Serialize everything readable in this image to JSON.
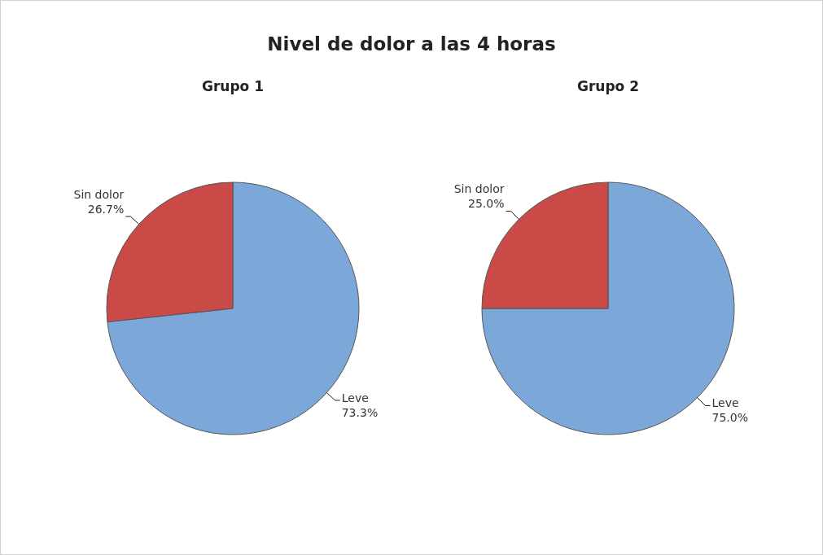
{
  "chart_data": [
    {
      "type": "pie",
      "title": "Nivel de dolor a las 4 horas",
      "subtitle": "Grupo 1",
      "categories": [
        "Leve",
        "Sin dolor"
      ],
      "values": [
        73.3,
        26.7
      ],
      "colors": [
        "#7ba7d9",
        "#c94a47"
      ],
      "value_labels": [
        "73.3%",
        "26.7%"
      ]
    },
    {
      "type": "pie",
      "subtitle": "Grupo 2",
      "categories": [
        "Leve",
        "Sin dolor"
      ],
      "values": [
        75.0,
        25.0
      ],
      "colors": [
        "#7ba7d9",
        "#c94a47"
      ],
      "value_labels": [
        "75.0%",
        "25.0%"
      ]
    }
  ]
}
